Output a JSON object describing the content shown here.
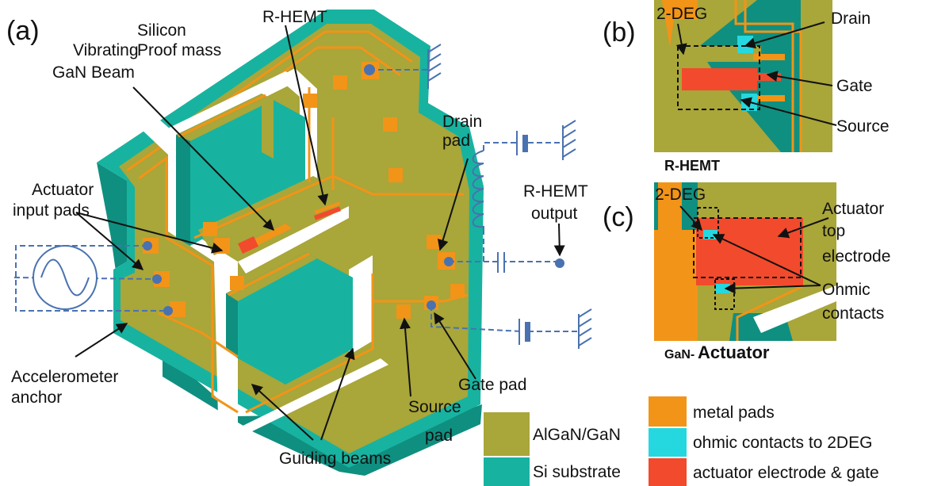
{
  "colors": {
    "algan": "#a9a63a",
    "si": "#17b3a0",
    "si_dark": "#0f8f80",
    "metal": "#f29418",
    "ohmic": "#25d8df",
    "electrode": "#f24a2c",
    "wire": "#4a72b0"
  },
  "panels": {
    "a": "(a)",
    "b": "(b)",
    "c": "(c)"
  },
  "labels_a": {
    "silicon_proof_mass_1": "Silicon",
    "silicon_proof_mass_2": "Proof mass",
    "vibrating_beam_1": "Vibrating",
    "vibrating_beam_2": "GaN Beam",
    "rhemt": "R-HEMT",
    "drain_pad_1": "Drain",
    "drain_pad_2": "pad",
    "rhemt_output_1": "R-HEMT",
    "rhemt_output_2": "output",
    "actuator_pads_1": "Actuator",
    "actuator_pads_2": "input pads",
    "anchor_1": "Accelerometer",
    "anchor_2": "anchor",
    "gate_pad": "Gate pad",
    "source_pad_1": "Source",
    "source_pad_2": "pad",
    "guiding_beams": "Guiding beams"
  },
  "labels_b": {
    "two_deg": "2-DEG",
    "drain": "Drain",
    "gate": "Gate",
    "source": "Source",
    "caption": "R-HEMT"
  },
  "labels_c": {
    "two_deg": "2-DEG",
    "actuator_top_1": "Actuator",
    "actuator_top_2": "top",
    "actuator_top_3": "electrode",
    "ohmic_1": "Ohmic",
    "ohmic_2": "contacts",
    "caption_prefix": "GaN-",
    "caption_main": "Actuator"
  },
  "legend": [
    {
      "label": "AlGaN/GaN",
      "color_key": "algan"
    },
    {
      "label": "Si substrate",
      "color_key": "si"
    },
    {
      "label": "metal pads",
      "color_key": "metal"
    },
    {
      "label": "ohmic contacts to 2DEG",
      "color_key": "ohmic"
    },
    {
      "label": "actuator electrode & gate",
      "color_key": "electrode"
    }
  ]
}
